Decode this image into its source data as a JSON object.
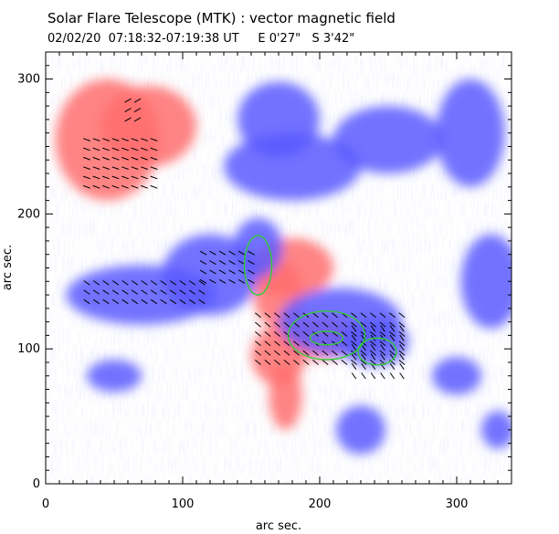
{
  "header": {
    "title": "Solar Flare Telescope (MTK) : vector magnetic field",
    "subtitle": "02/02/20  07:18:32-07:19:38 UT     E 0'27\"   S 3'42\""
  },
  "chart_data": {
    "type": "heatmap",
    "title": "Solar Flare Telescope (MTK) : vector magnetic field",
    "subtitle": "02/02/20  07:18:32-07:19:38 UT     E 0'27\"   S 3'42\"",
    "xlabel": "arc sec.",
    "ylabel": "arc sec.",
    "xlim": [
      0,
      340
    ],
    "ylim": [
      0,
      320
    ],
    "xticks": [
      0,
      100,
      200,
      300
    ],
    "yticks": [
      0,
      100,
      200,
      300
    ],
    "colors": {
      "positive_polarity": "#ff6e6e",
      "negative_polarity": "#5a5aff",
      "contour": "#33cc33",
      "vectors": "#000000"
    },
    "regions": [
      {
        "polarity": "positive",
        "x": 45,
        "y": 255,
        "rx": 38,
        "ry": 45
      },
      {
        "polarity": "positive",
        "x": 75,
        "y": 265,
        "rx": 35,
        "ry": 30
      },
      {
        "polarity": "positive",
        "x": 180,
        "y": 160,
        "rx": 30,
        "ry": 22
      },
      {
        "polarity": "positive",
        "x": 170,
        "y": 140,
        "rx": 18,
        "ry": 25
      },
      {
        "polarity": "positive",
        "x": 200,
        "y": 108,
        "rx": 30,
        "ry": 16
      },
      {
        "polarity": "positive",
        "x": 170,
        "y": 95,
        "rx": 20,
        "ry": 22
      },
      {
        "polarity": "positive",
        "x": 175,
        "y": 65,
        "rx": 12,
        "ry": 25
      },
      {
        "polarity": "negative",
        "x": 70,
        "y": 140,
        "rx": 55,
        "ry": 22
      },
      {
        "polarity": "negative",
        "x": 120,
        "y": 155,
        "rx": 35,
        "ry": 30
      },
      {
        "polarity": "negative",
        "x": 155,
        "y": 175,
        "rx": 18,
        "ry": 22
      },
      {
        "polarity": "negative",
        "x": 240,
        "y": 105,
        "rx": 25,
        "ry": 18
      },
      {
        "polarity": "negative",
        "x": 215,
        "y": 120,
        "rx": 45,
        "ry": 25
      },
      {
        "polarity": "negative",
        "x": 180,
        "y": 235,
        "rx": 50,
        "ry": 25
      },
      {
        "polarity": "negative",
        "x": 250,
        "y": 255,
        "rx": 40,
        "ry": 25
      },
      {
        "polarity": "negative",
        "x": 170,
        "y": 270,
        "rx": 30,
        "ry": 28
      },
      {
        "polarity": "negative",
        "x": 310,
        "y": 260,
        "rx": 25,
        "ry": 40
      },
      {
        "polarity": "negative",
        "x": 325,
        "y": 150,
        "rx": 22,
        "ry": 35
      },
      {
        "polarity": "negative",
        "x": 230,
        "y": 40,
        "rx": 18,
        "ry": 18
      },
      {
        "polarity": "negative",
        "x": 300,
        "y": 80,
        "rx": 18,
        "ry": 14
      },
      {
        "polarity": "negative",
        "x": 330,
        "y": 40,
        "rx": 12,
        "ry": 14
      },
      {
        "polarity": "negative",
        "x": 50,
        "y": 80,
        "rx": 20,
        "ry": 12
      }
    ],
    "contours": [
      {
        "x": 155,
        "y": 162,
        "rx": 10,
        "ry": 22
      },
      {
        "x": 205,
        "y": 110,
        "rx": 28,
        "ry": 18
      },
      {
        "x": 205,
        "y": 108,
        "rx": 12,
        "ry": 5
      },
      {
        "x": 242,
        "y": 98,
        "rx": 14,
        "ry": 10
      }
    ],
    "vector_fields": [
      {
        "x": [
          30,
          120
        ],
        "y": [
          135,
          150
        ],
        "angle": -35
      },
      {
        "x": [
          115,
          155
        ],
        "y": [
          150,
          175
        ],
        "angle": -30
      },
      {
        "x": [
          155,
          265
        ],
        "y": [
          90,
          125
        ],
        "angle": -40
      },
      {
        "x": [
          225,
          260
        ],
        "y": [
          80,
          120
        ],
        "angle": -55
      },
      {
        "x": [
          30,
          80
        ],
        "y": [
          220,
          260
        ],
        "angle": -20
      },
      {
        "x": [
          60,
          70
        ],
        "y": [
          270,
          290
        ],
        "angle": 30
      }
    ]
  }
}
